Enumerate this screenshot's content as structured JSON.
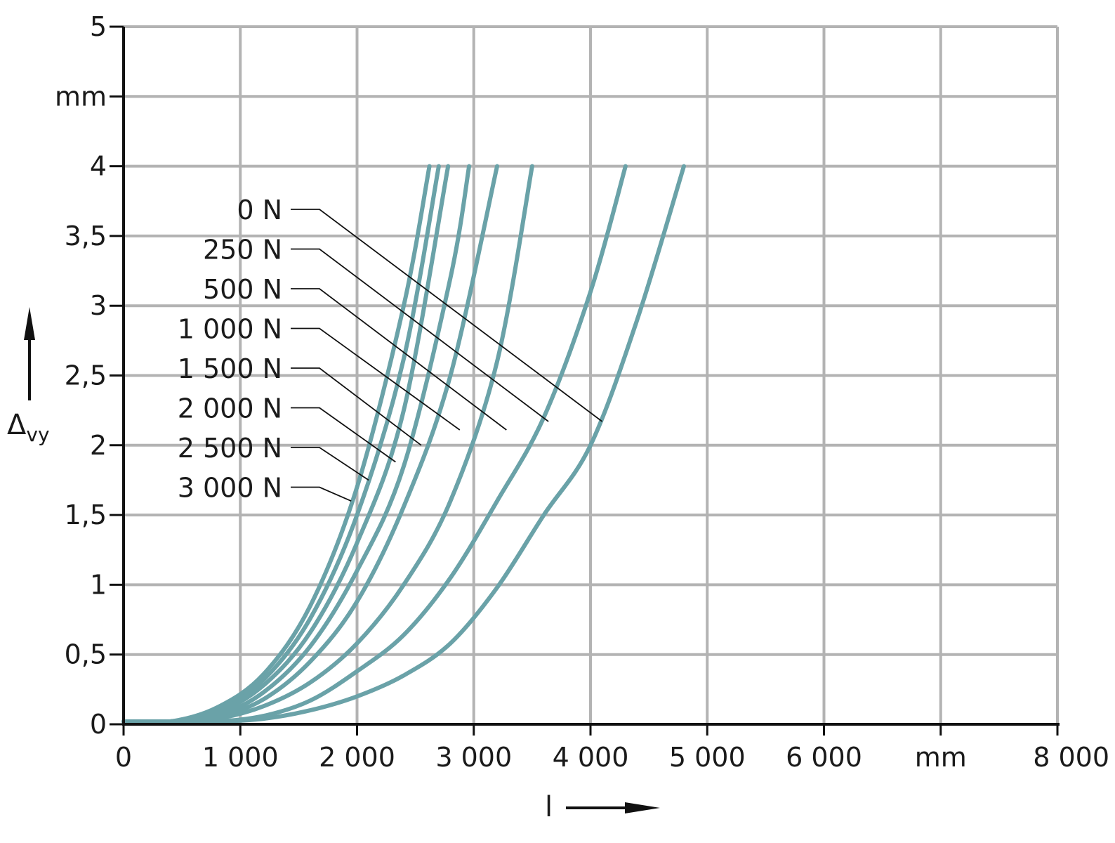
{
  "chart_data": {
    "type": "line",
    "xlim": [
      0,
      8000
    ],
    "ylim": [
      0,
      5
    ],
    "x_ticks": [
      {
        "value": 0,
        "label": "0"
      },
      {
        "value": 1000,
        "label": "1 000"
      },
      {
        "value": 2000,
        "label": "2 000"
      },
      {
        "value": 3000,
        "label": "3 000"
      },
      {
        "value": 4000,
        "label": "4 000"
      },
      {
        "value": 5000,
        "label": "5 000"
      },
      {
        "value": 6000,
        "label": "6 000"
      },
      {
        "value": 7000,
        "label": "mm"
      },
      {
        "value": 8000,
        "label": "8 000"
      }
    ],
    "y_ticks": [
      {
        "value": 0,
        "label": "0"
      },
      {
        "value": 0.5,
        "label": "0,5"
      },
      {
        "value": 1,
        "label": "1"
      },
      {
        "value": 1.5,
        "label": "1,5"
      },
      {
        "value": 2,
        "label": "2"
      },
      {
        "value": 2.5,
        "label": "2,5"
      },
      {
        "value": 3,
        "label": "3"
      },
      {
        "value": 3.5,
        "label": "3,5"
      },
      {
        "value": 4,
        "label": "4"
      },
      {
        "value": 4.5,
        "label": "mm"
      },
      {
        "value": 5,
        "label": "5"
      }
    ],
    "xlabel": "l",
    "ylabel": "Δ",
    "ylabel_sub": "vy",
    "grid": true,
    "series_color": "#6aa2a8",
    "series": [
      {
        "name": "0 N",
        "x": [
          0,
          400,
          800,
          1200,
          1600,
          2000,
          2400,
          2800,
          3200,
          3600,
          4000,
          4400,
          4800
        ],
        "y": [
          0.02,
          0.02,
          0.02,
          0.04,
          0.1,
          0.2,
          0.35,
          0.58,
          0.98,
          1.5,
          2.0,
          2.9,
          4.0
        ]
      },
      {
        "name": "250 N",
        "x": [
          0,
          400,
          800,
          1200,
          1600,
          2000,
          2400,
          2800,
          3200,
          3600,
          4000,
          4300
        ],
        "y": [
          0.02,
          0.02,
          0.02,
          0.06,
          0.17,
          0.38,
          0.64,
          1.05,
          1.6,
          2.2,
          3.1,
          4.0
        ]
      },
      {
        "name": "500 N",
        "x": [
          0,
          400,
          800,
          1200,
          1600,
          2000,
          2400,
          2800,
          3200,
          3500
        ],
        "y": [
          0.02,
          0.02,
          0.04,
          0.13,
          0.3,
          0.58,
          1.0,
          1.6,
          2.6,
          4.0
        ]
      },
      {
        "name": "1 000 N",
        "x": [
          0,
          400,
          800,
          1200,
          1600,
          2000,
          2400,
          2800,
          3200
        ],
        "y": [
          0.02,
          0.02,
          0.05,
          0.18,
          0.45,
          0.88,
          1.56,
          2.5,
          4.0
        ]
      },
      {
        "name": "1 500 N",
        "x": [
          0,
          400,
          800,
          1200,
          1600,
          2000,
          2400,
          2800,
          2960
        ],
        "y": [
          0.02,
          0.02,
          0.06,
          0.23,
          0.56,
          1.1,
          1.85,
          3.2,
          4.0
        ]
      },
      {
        "name": "2 000 N",
        "x": [
          0,
          400,
          800,
          1200,
          1600,
          2000,
          2400,
          2780
        ],
        "y": [
          0.02,
          0.02,
          0.08,
          0.28,
          0.66,
          1.3,
          2.25,
          4.0
        ]
      },
      {
        "name": "2 500 N",
        "x": [
          0,
          400,
          800,
          1200,
          1600,
          2000,
          2400,
          2700
        ],
        "y": [
          0.02,
          0.02,
          0.1,
          0.32,
          0.76,
          1.5,
          2.62,
          4.0
        ]
      },
      {
        "name": "3 000 N",
        "x": [
          0,
          400,
          800,
          1200,
          1600,
          2000,
          2400,
          2620
        ],
        "y": [
          0.02,
          0.02,
          0.12,
          0.36,
          0.85,
          1.7,
          3.0,
          4.0
        ]
      }
    ],
    "legend_targets": [
      {
        "name": "0 N",
        "x": 4100,
        "y": 2.17
      },
      {
        "name": "250 N",
        "x": 3640,
        "y": 2.17
      },
      {
        "name": "500 N",
        "x": 3280,
        "y": 2.11
      },
      {
        "name": "1 000 N",
        "x": 2880,
        "y": 2.11
      },
      {
        "name": "1 500 N",
        "x": 2550,
        "y": 2.0
      },
      {
        "name": "2 000 N",
        "x": 2330,
        "y": 1.88
      },
      {
        "name": "2 500 N",
        "x": 2100,
        "y": 1.75
      },
      {
        "name": "3 000 N",
        "x": 1950,
        "y": 1.6
      }
    ]
  }
}
